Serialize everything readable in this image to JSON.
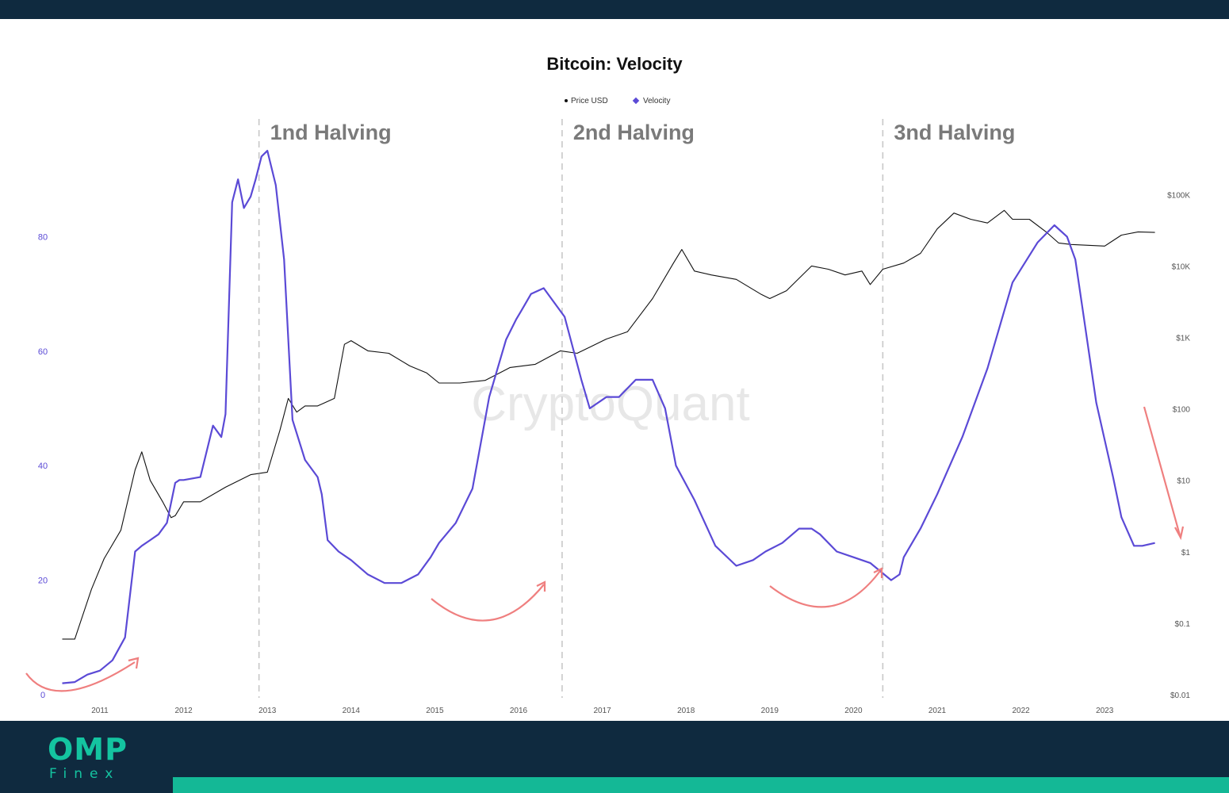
{
  "brand": {
    "logo_main": "OMP",
    "logo_sub": "Finex"
  },
  "colors": {
    "frame": "#0f2a3f",
    "accent": "#14b896",
    "price": "#111111",
    "velocity": "#5b4ad6",
    "arrow": "#ef7f7f",
    "halving_line": "#c8c8c8",
    "halving_text": "#7a7a7a"
  },
  "chart_data": {
    "type": "line",
    "title": "Bitcoin: Velocity",
    "watermark": "CryptoQuant",
    "legend": [
      "Price USD",
      "Velocity"
    ],
    "legend_placement": "top-center",
    "x_ticks": [
      "2011",
      "2012",
      "2013",
      "2014",
      "2015",
      "2016",
      "2017",
      "2018",
      "2019",
      "2020",
      "2021",
      "2022",
      "2023"
    ],
    "left_axis": {
      "ticks": [
        "0",
        "20",
        "40",
        "60",
        "80"
      ],
      "range": [
        0,
        97
      ]
    },
    "right_axis": {
      "scale": "log",
      "ticks": [
        "$0.01",
        "$0.1",
        "$1",
        "$10",
        "$100",
        "$1K",
        "$10K",
        "$100K"
      ],
      "range": [
        "$0.01",
        "$100K"
      ]
    },
    "halvings": [
      {
        "label": "1nd Halving",
        "x": 2012.9
      },
      {
        "label": "2nd Halving",
        "x": 2016.52
      },
      {
        "label": "3nd Halving",
        "x": 2020.35
      }
    ],
    "series": [
      {
        "name": "Velocity",
        "axis": "left",
        "x": [
          2010.55,
          2010.7,
          2010.85,
          2011.0,
          2011.15,
          2011.3,
          2011.42,
          2011.5,
          2011.6,
          2011.7,
          2011.8,
          2011.9,
          2011.95,
          2012.0,
          2012.2,
          2012.35,
          2012.45,
          2012.5,
          2012.58,
          2012.65,
          2012.72,
          2012.8,
          2012.86,
          2012.93,
          2013.0,
          2013.1,
          2013.2,
          2013.3,
          2013.45,
          2013.6,
          2013.65,
          2013.72,
          2013.85,
          2014.0,
          2014.2,
          2014.4,
          2014.6,
          2014.8,
          2014.95,
          2015.05,
          2015.25,
          2015.45,
          2015.65,
          2015.85,
          2015.97,
          2016.03,
          2016.15,
          2016.3,
          2016.55,
          2016.75,
          2016.85,
          2016.95,
          2017.05,
          2017.2,
          2017.4,
          2017.6,
          2017.75,
          2017.88,
          2018.1,
          2018.35,
          2018.6,
          2018.8,
          2018.95,
          2019.15,
          2019.35,
          2019.5,
          2019.6,
          2019.8,
          2020.0,
          2020.2,
          2020.45,
          2020.55,
          2020.6,
          2020.8,
          2021.0,
          2021.3,
          2021.6,
          2021.9,
          2022.2,
          2022.4,
          2022.55,
          2022.65,
          2022.75,
          2022.9,
          2023.1,
          2023.2,
          2023.35,
          2023.45,
          2023.6
        ],
        "values": [
          2,
          2.2,
          3.5,
          4.2,
          6,
          10,
          25,
          26,
          27,
          28,
          30,
          37,
          37.5,
          37.5,
          38,
          47,
          45,
          49,
          86,
          90,
          85,
          87,
          90,
          94,
          95,
          89,
          76,
          48,
          41,
          38,
          35,
          27,
          25,
          23.5,
          21,
          19.5,
          19.5,
          21,
          24,
          26.5,
          30,
          36,
          52,
          62,
          65.5,
          67,
          70,
          71,
          66,
          55,
          50,
          51,
          52,
          52,
          55,
          55,
          50,
          40,
          34,
          26,
          22.5,
          23.5,
          25,
          26.5,
          29,
          29,
          28,
          25,
          24,
          23,
          20,
          21,
          24,
          29,
          35,
          45,
          57,
          72,
          79,
          82,
          80,
          76,
          66,
          51,
          38,
          31,
          26,
          26,
          26.5
        ]
      },
      {
        "name": "Price USD",
        "axis": "right",
        "x": [
          2010.55,
          2010.7,
          2010.9,
          2011.05,
          2011.25,
          2011.42,
          2011.5,
          2011.6,
          2011.75,
          2011.85,
          2011.9,
          2012.0,
          2012.2,
          2012.5,
          2012.8,
          2013.0,
          2013.15,
          2013.25,
          2013.35,
          2013.45,
          2013.6,
          2013.8,
          2013.92,
          2014.0,
          2014.2,
          2014.45,
          2014.7,
          2014.9,
          2015.05,
          2015.3,
          2015.6,
          2015.9,
          2016.2,
          2016.5,
          2016.7,
          2016.9,
          2017.05,
          2017.3,
          2017.6,
          2017.85,
          2017.95,
          2018.1,
          2018.3,
          2018.6,
          2018.9,
          2019.0,
          2019.2,
          2019.5,
          2019.7,
          2019.9,
          2020.1,
          2020.2,
          2020.35,
          2020.6,
          2020.8,
          2021.0,
          2021.2,
          2021.4,
          2021.6,
          2021.8,
          2021.9,
          2022.1,
          2022.3,
          2022.45,
          2022.6,
          2022.8,
          2023.0,
          2023.2,
          2023.4,
          2023.6
        ],
        "values": [
          0.06,
          0.06,
          0.3,
          0.8,
          2,
          14,
          25,
          10,
          5,
          3,
          3.2,
          5,
          5,
          8,
          12,
          13,
          50,
          140,
          90,
          110,
          110,
          140,
          800,
          900,
          650,
          600,
          400,
          320,
          230,
          230,
          250,
          380,
          420,
          650,
          600,
          780,
          950,
          1200,
          3500,
          11000,
          17000,
          8500,
          7500,
          6500,
          4000,
          3500,
          4500,
          10000,
          9000,
          7500,
          8500,
          5500,
          9000,
          11000,
          15000,
          33000,
          55000,
          45000,
          40000,
          60000,
          45000,
          45000,
          30000,
          21000,
          20000,
          19500,
          19000,
          27000,
          30000,
          29500
        ]
      }
    ]
  }
}
